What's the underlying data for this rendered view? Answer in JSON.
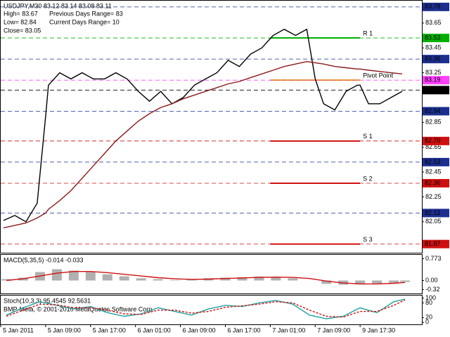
{
  "chart_data": [
    {
      "type": "line",
      "title": "USDJPY,M30  83.12 83.14 83.08 83.11",
      "info": [
        "High= 83.67",
        "Previous Days Range= 83",
        "Low= 82.84",
        "Current Days Range= 10",
        "Close= 83.05"
      ],
      "x": [
        1,
        5,
        9,
        13,
        16,
        17,
        21,
        25,
        29,
        33,
        37,
        41,
        45,
        49,
        53,
        57,
        61,
        65,
        69,
        73,
        77,
        81,
        85,
        89,
        93,
        97,
        101,
        105,
        109,
        112,
        115,
        119,
        123,
        127,
        128,
        131,
        135,
        139,
        143
      ],
      "series": [
        {
          "color": "#000000",
          "values": [
            82.06,
            82.1,
            82.05,
            82.2,
            82.9,
            83.15,
            83.25,
            83.2,
            83.25,
            83.2,
            83.2,
            83.25,
            83.2,
            83.1,
            83.02,
            83.1,
            83.0,
            83.05,
            83.15,
            83.2,
            83.25,
            83.35,
            83.3,
            83.4,
            83.45,
            83.55,
            83.6,
            83.55,
            83.6,
            83.2,
            83.0,
            82.95,
            83.1,
            83.15,
            83.15,
            83.0,
            83.0,
            83.05,
            83.1
          ]
        },
        {
          "color": "#8b1a1a",
          "values": [
            82.0,
            82.02,
            82.04,
            82.08,
            82.12,
            82.15,
            82.22,
            82.3,
            82.4,
            82.5,
            82.6,
            82.7,
            82.78,
            82.86,
            82.92,
            82.97,
            83.0,
            83.04,
            83.07,
            83.1,
            83.13,
            83.16,
            83.18,
            83.21,
            83.24,
            83.27,
            83.3,
            83.32,
            83.34,
            83.33,
            83.32,
            83.3,
            83.29,
            83.28,
            83.28,
            83.27,
            83.26,
            83.25,
            83.24
          ]
        }
      ],
      "xlim": [
        0,
        150
      ],
      "xticks": [
        {
          "value": 0,
          "label": "5 Jan 2011"
        },
        {
          "value": 16,
          "label": "5 Jan 09:00"
        },
        {
          "value": 32,
          "label": "5 Jan 17:00"
        },
        {
          "value": 48,
          "label": "6 Jan 01:00"
        },
        {
          "value": 64,
          "label": "6 Jan 09:00"
        },
        {
          "value": 80,
          "label": "6 Jan 17:00"
        },
        {
          "value": 96,
          "label": "7 Jan 01:00"
        },
        {
          "value": 112,
          "label": "7 Jan 09:00"
        },
        {
          "value": 128,
          "label": "9 Jan 17:30"
        }
      ],
      "ylim": [
        81.8,
        83.83
      ],
      "yticks": [
        83.65,
        83.45,
        83.25,
        82.85,
        82.65,
        82.45,
        82.25,
        82.05
      ],
      "price_labels": [
        {
          "value": 83.78,
          "color": "#1c2f8f"
        },
        {
          "value": 83.53,
          "color": "#00b000"
        },
        {
          "value": 83.36,
          "color": "#1c2f8f"
        },
        {
          "value": 83.19,
          "color": "#ff40ff"
        },
        {
          "value": 83.11,
          "color": "#000000"
        },
        {
          "value": 82.94,
          "color": "#1c2f8f"
        },
        {
          "value": {
            "value": 82.7,
            "label": "82.70"
          },
          "color": "#d01010"
        },
        {
          "value": 82.53,
          "color": "#1c2f8f"
        },
        {
          "value": 82.36,
          "color": "#d01010"
        },
        {
          "value": 82.12,
          "color": "#1c2f8f"
        },
        {
          "value": 81.87,
          "color": "#d01010"
        }
      ],
      "levels": [
        {
          "label": "R 1",
          "value": 83.53,
          "color": "#00b000"
        },
        {
          "label": "Pivot Point",
          "value": 83.19,
          "color": "#e0a000"
        },
        {
          "label": "S 1",
          "value": 82.7,
          "color": "#d01010"
        },
        {
          "label": "S 2",
          "value": 82.36,
          "color": "#d01010"
        },
        {
          "label": "S 3",
          "value": 81.87,
          "color": "#d01010"
        }
      ]
    },
    {
      "type": "bar",
      "title": "MACD(5,35,5) -0.014 -0.033",
      "x": [
        2,
        8,
        14,
        20,
        26,
        32,
        38,
        44,
        50,
        56,
        62,
        68,
        74,
        80,
        86,
        92,
        98,
        104,
        110,
        116,
        122,
        128,
        134,
        140,
        144
      ],
      "series": [
        {
          "type": "bar",
          "color": "#b0b0b0",
          "values": [
            0.05,
            0.1,
            0.3,
            0.4,
            0.35,
            0.3,
            0.22,
            0.15,
            0.08,
            0.05,
            0.02,
            0.04,
            0.08,
            0.1,
            0.12,
            0.14,
            0.12,
            0.08,
            0.0,
            -0.12,
            -0.15,
            -0.14,
            -0.1,
            -0.08,
            -0.05
          ]
        },
        {
          "type": "line",
          "color": "#d01010",
          "values": [
            0.0,
            0.06,
            0.16,
            0.26,
            0.32,
            0.32,
            0.28,
            0.22,
            0.16,
            0.1,
            0.06,
            0.04,
            0.05,
            0.07,
            0.09,
            0.11,
            0.12,
            0.11,
            0.07,
            -0.02,
            -0.09,
            -0.12,
            -0.12,
            -0.1,
            -0.07
          ]
        }
      ],
      "xlim": [
        0,
        150
      ],
      "ylim": [
        -0.46,
        0.91
      ],
      "yticks": [
        0.773,
        {
          "value": 0,
          "label": "0.00"
        },
        -0.32
      ]
    },
    {
      "type": "line",
      "title": "Stoch(10,3,3) 95.4545 92.5631",
      "footer": "BMP-Meta, © 2001-2010 MetaQuotes Software Corp.",
      "x": [
        2,
        8,
        14,
        20,
        26,
        32,
        38,
        44,
        50,
        56,
        62,
        68,
        74,
        80,
        86,
        92,
        98,
        104,
        110,
        116,
        122,
        128,
        134,
        140,
        144
      ],
      "series": [
        {
          "color": "#20a0a0",
          "values": [
            30,
            60,
            85,
            70,
            55,
            65,
            40,
            25,
            35,
            60,
            45,
            30,
            55,
            70,
            65,
            80,
            90,
            75,
            30,
            15,
            25,
            60,
            40,
            85,
            95
          ]
        },
        {
          "color": "#d01010",
          "values": [
            25,
            50,
            75,
            72,
            60,
            60,
            50,
            35,
            33,
            50,
            50,
            38,
            45,
            62,
            68,
            75,
            85,
            80,
            50,
            25,
            22,
            45,
            45,
            70,
            92
          ]
        }
      ],
      "xlim": [
        0,
        150
      ],
      "ylim": [
        -8,
        110
      ],
      "yticks": [
        100,
        80,
        20,
        0
      ]
    }
  ]
}
